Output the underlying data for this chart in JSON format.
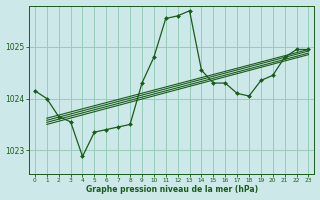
{
  "title": "Graphe pression niveau de la mer (hPa)",
  "bg_color": "#cce8e8",
  "grid_color": "#99ccbb",
  "line_color": "#1a5c1a",
  "marker_color": "#1a5c1a",
  "xlim": [
    -0.5,
    23.5
  ],
  "ylim": [
    1022.55,
    1025.8
  ],
  "yticks": [
    1023,
    1024,
    1025
  ],
  "xticks": [
    0,
    1,
    2,
    3,
    4,
    5,
    6,
    7,
    8,
    9,
    10,
    11,
    12,
    13,
    14,
    15,
    16,
    17,
    18,
    19,
    20,
    21,
    22,
    23
  ],
  "main_series_x": [
    0,
    1,
    2,
    3,
    4,
    5,
    6,
    7,
    8,
    9,
    10,
    11,
    12,
    13,
    14,
    15,
    16,
    17,
    18,
    19,
    20,
    21,
    22,
    23
  ],
  "main_series_y": [
    1024.15,
    1024.0,
    1023.65,
    1023.55,
    1022.88,
    1023.35,
    1023.4,
    1023.45,
    1023.5,
    1024.3,
    1024.8,
    1025.55,
    1025.6,
    1025.7,
    1024.55,
    1024.3,
    1024.3,
    1024.1,
    1024.05,
    1024.35,
    1024.45,
    1024.8,
    1024.95,
    1024.95
  ],
  "trend_lines": [
    {
      "x0": 1,
      "y0": 1023.62,
      "x1": 23,
      "y1": 1024.95
    },
    {
      "x0": 1,
      "y0": 1023.58,
      "x1": 23,
      "y1": 1024.92
    },
    {
      "x0": 1,
      "y0": 1023.54,
      "x1": 23,
      "y1": 1024.88
    },
    {
      "x0": 1,
      "y0": 1023.5,
      "x1": 23,
      "y1": 1024.85
    }
  ]
}
